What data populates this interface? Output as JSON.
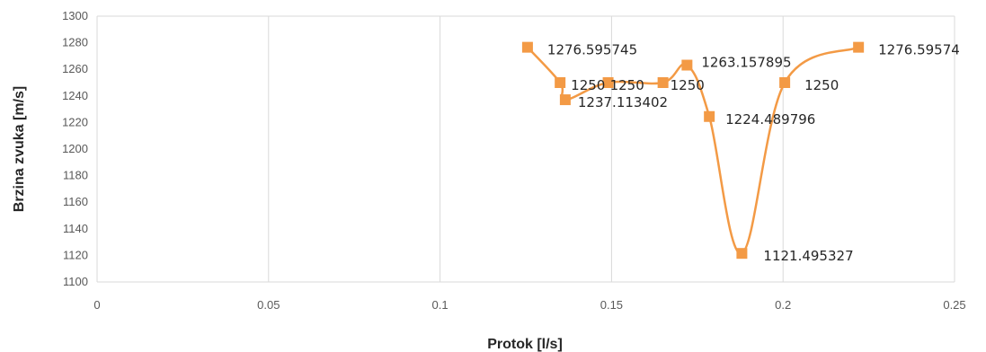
{
  "chart_data": {
    "type": "scatter",
    "xlabel": "Protok [l/s]",
    "ylabel": "Brzina zvuka [m/s]",
    "xlim": [
      0,
      0.25
    ],
    "ylim": [
      1100,
      1300
    ],
    "x_ticks": [
      "0",
      "0.05",
      "0.1",
      "0.15",
      "0.2",
      "0.25"
    ],
    "y_ticks": [
      "1100",
      "1120",
      "1140",
      "1160",
      "1180",
      "1200",
      "1220",
      "1240",
      "1260",
      "1280",
      "1300"
    ],
    "grid": "vertical",
    "legend": "none",
    "color": "#F39A45",
    "series": [
      {
        "points": [
          {
            "x": 0.1255,
            "y": 1276.595745,
            "label": "1276.595745"
          },
          {
            "x": 0.135,
            "y": 1250,
            "label": "1250"
          },
          {
            "x": 0.1365,
            "y": 1237.113402,
            "label": "1237.113402"
          },
          {
            "x": 0.149,
            "y": 1250,
            "label": "1250"
          },
          {
            "x": 0.165,
            "y": 1250,
            "label": "1250"
          },
          {
            "x": 0.172,
            "y": 1263.157895,
            "label": "1263.157895"
          },
          {
            "x": 0.1785,
            "y": 1224.489796,
            "label": "1224.489796"
          },
          {
            "x": 0.188,
            "y": 1121.495327,
            "label": "1121.495327"
          },
          {
            "x": 0.2005,
            "y": 1250,
            "label": "1250"
          },
          {
            "x": 0.222,
            "y": 1276.59574,
            "label": "1276.59574"
          }
        ]
      }
    ]
  }
}
